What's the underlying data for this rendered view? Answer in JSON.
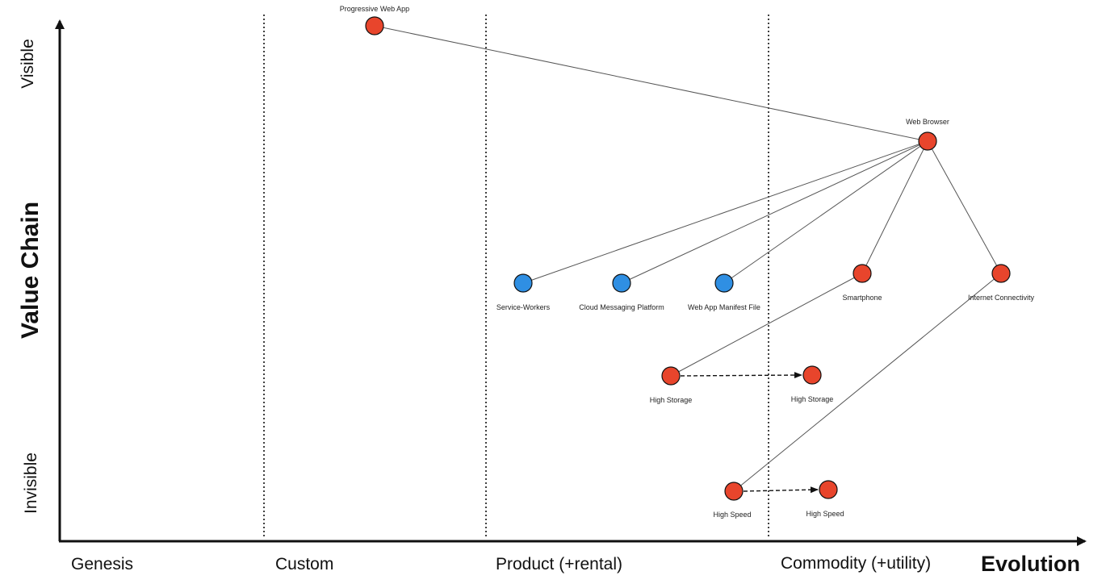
{
  "axes": {
    "x_title": "Evolution",
    "y_title": "Value Chain",
    "y_top_label": "Visible",
    "y_bottom_label": "Invisible"
  },
  "stages": [
    "Genesis",
    "Custom",
    "Product (+rental)",
    "Commodity (+utility)"
  ],
  "colors": {
    "red_component": "#e8452c",
    "blue_component": "#2f8fe3",
    "axis": "#111111",
    "link": "#555555"
  },
  "components": [
    {
      "id": "pwa",
      "label": "Progressive Web App",
      "color": "red"
    },
    {
      "id": "browser",
      "label": "Web Browser",
      "color": "red"
    },
    {
      "id": "sw",
      "label": "Service-Workers",
      "color": "blue"
    },
    {
      "id": "cmp",
      "label": "Cloud Messaging Platform",
      "color": "blue"
    },
    {
      "id": "manifest",
      "label": "Web App Manifest File",
      "color": "blue"
    },
    {
      "id": "smartphone",
      "label": "Smartphone",
      "color": "red"
    },
    {
      "id": "internet",
      "label": "Internet Connectivity",
      "color": "red"
    },
    {
      "id": "storage1",
      "label": "High Storage",
      "color": "red"
    },
    {
      "id": "storage2",
      "label": "High Storage",
      "color": "red"
    },
    {
      "id": "speed1",
      "label": "High Speed",
      "color": "red"
    },
    {
      "id": "speed2",
      "label": "High Speed",
      "color": "red"
    }
  ],
  "links": [
    {
      "from": "pwa",
      "to": "browser"
    },
    {
      "from": "browser",
      "to": "sw"
    },
    {
      "from": "browser",
      "to": "cmp"
    },
    {
      "from": "browser",
      "to": "manifest"
    },
    {
      "from": "browser",
      "to": "smartphone"
    },
    {
      "from": "browser",
      "to": "internet"
    },
    {
      "from": "smartphone",
      "to": "storage1"
    },
    {
      "from": "internet",
      "to": "speed1"
    }
  ],
  "evolution_arrows": [
    {
      "from": "storage1",
      "to": "storage2"
    },
    {
      "from": "speed1",
      "to": "speed2"
    }
  ]
}
